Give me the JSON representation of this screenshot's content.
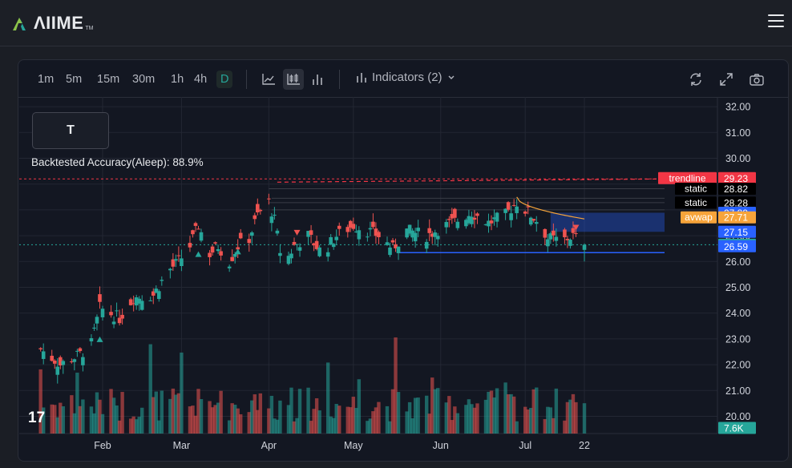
{
  "brand": {
    "logo_text": "ΛIIME",
    "logo_tm": "TM"
  },
  "toolbar": {
    "timeframes": [
      "1m",
      "5m",
      "15m",
      "30m",
      "1h",
      "4h",
      "D"
    ],
    "active_timeframe": "D",
    "indicators_label": "Indicators (2)",
    "icons": [
      "line-chart-icon",
      "candles-icon",
      "bars-icon",
      "refresh-icon",
      "fullscreen-icon",
      "camera-icon"
    ]
  },
  "ticker": "T",
  "accuracy_text": "Backtested Accuracy(Aleep): 88.9%",
  "colors": {
    "up": "#26a69a",
    "down": "#ef5350",
    "trendline": "#f23645",
    "support": "#2962ff",
    "avwap": "#f7a43a"
  },
  "chart_data": {
    "type": "candlestick",
    "y_ticks": [
      "32.00",
      "31.00",
      "30.00",
      "29.00",
      "28.00",
      "27.00",
      "26.00",
      "25.00",
      "24.00",
      "23.00",
      "22.00",
      "21.00",
      "20.00"
    ],
    "x_ticks": [
      "Feb",
      "Mar",
      "Apr",
      "May",
      "Jun",
      "Jul",
      "22"
    ],
    "y_range": [
      19.5,
      32.4
    ],
    "price_path": [
      [
        "Jan 10",
        22.6
      ],
      [
        "Jan 17",
        22.0
      ],
      [
        "Jan 24",
        22.4
      ],
      [
        "Jan 28",
        22.8
      ],
      [
        "Jan 31",
        24.2
      ],
      [
        "Feb 7",
        23.8
      ],
      [
        "Feb 12",
        24.6
      ],
      [
        "Feb 19",
        24.7
      ],
      [
        "Feb 24",
        25.6
      ],
      [
        "Feb 28",
        26.0
      ],
      [
        "Mar 4",
        26.6
      ],
      [
        "Mar 7",
        27.4
      ],
      [
        "Mar 11",
        26.3
      ],
      [
        "Mar 14",
        26.6
      ],
      [
        "Mar 18",
        26.0
      ],
      [
        "Mar 21",
        26.6
      ],
      [
        "Mar 25",
        26.9
      ],
      [
        "Mar 28",
        27.8
      ],
      [
        "Apr 1",
        28.3
      ],
      [
        "Apr 3",
        27.6
      ],
      [
        "Apr 6",
        25.8
      ],
      [
        "Apr 10",
        26.6
      ],
      [
        "Apr 15",
        27.0
      ],
      [
        "Apr 20",
        26.3
      ],
      [
        "Apr 25",
        27.0
      ],
      [
        "May 1",
        27.4
      ],
      [
        "May 6",
        27.2
      ],
      [
        "May 10",
        27.0
      ],
      [
        "May 15",
        26.5
      ],
      [
        "May 20",
        27.2
      ],
      [
        "May 27",
        27.0
      ],
      [
        "Jun 1",
        27.3
      ],
      [
        "Jun 7",
        27.6
      ],
      [
        "Jun 12",
        27.9
      ],
      [
        "Jun 18",
        27.5
      ],
      [
        "Jun 24",
        27.8
      ],
      [
        "Jun 28",
        28.3
      ],
      [
        "Jul 2",
        27.9
      ],
      [
        "Jul 6",
        27.5
      ],
      [
        "Jul 9",
        26.9
      ],
      [
        "Jul 14",
        26.8
      ],
      [
        "Jul 18",
        27.0
      ],
      [
        "Jul 22",
        26.65
      ]
    ],
    "volume_max_label": "7.6K",
    "levels": [
      {
        "label": "trendline",
        "value": "29.23",
        "color": "#f23645"
      },
      {
        "label": "static",
        "value": "28.82",
        "color": "#000000"
      },
      {
        "label": "static",
        "value": "28.28",
        "color": "#000000"
      },
      {
        "label": "",
        "value": "27.89",
        "color": "#2962ff"
      },
      {
        "label": "avwap",
        "value": "27.71",
        "color": "#f7a43a"
      },
      {
        "label": "",
        "value": "27.15",
        "color": "#2962ff"
      },
      {
        "label": "",
        "value": "26.65",
        "color": "#26a69a"
      },
      {
        "label": "",
        "value": "26.59",
        "color": "#2962ff"
      },
      {
        "label": "",
        "value": "7.6K",
        "color": "#26a69a"
      }
    ]
  }
}
